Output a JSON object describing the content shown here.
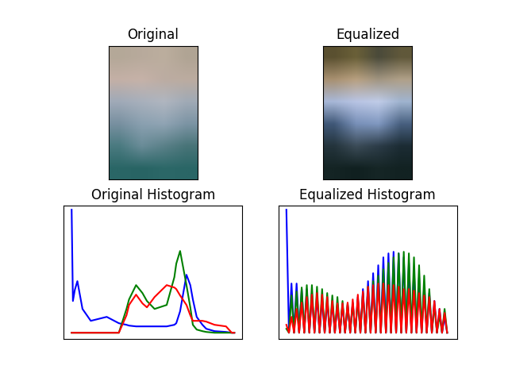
{
  "chart_data": [
    {
      "type": "image",
      "title": "Original",
      "tick_labels": false,
      "cells": [
        [
          "#b4a898",
          "#b8aa9c",
          "#bcae9e",
          "#b0a494"
        ],
        [
          "#c4b0a6",
          "#c6b2a8",
          "#bcaca2",
          "#bcaca0"
        ],
        [
          "#a0aab8",
          "#a8b0bc",
          "#b0b6c0",
          "#a0aab6"
        ],
        [
          "#7890a0",
          "#8aa0b0",
          "#90a4b4",
          "#7c94a4"
        ],
        [
          "#4a7a80",
          "#6a8c98",
          "#5a8088",
          "#487478"
        ],
        [
          "#2a6666",
          "#286464",
          "#2c6868",
          "#2a6666"
        ]
      ]
    },
    {
      "type": "image",
      "title": "Equalized",
      "tick_labels": false,
      "cells": [
        [
          "#5a5030",
          "#6a6038",
          "#4a4a3a",
          "#60583a"
        ],
        [
          "#a89070",
          "#b8a080",
          "#a09480",
          "#b0a088"
        ],
        [
          "#a8b8d8",
          "#b8c4e4",
          "#c0cce8",
          "#a0b4d0"
        ],
        [
          "#405878",
          "#7890b8",
          "#8098c0",
          "#486080"
        ],
        [
          "#24343c",
          "#3c4c58",
          "#2c3c48",
          "#1c2c34"
        ],
        [
          "#142424",
          "#102020",
          "#162626",
          "#122222"
        ]
      ]
    },
    {
      "type": "line",
      "title": "Original Histogram",
      "tick_labels": false,
      "xlim": [
        -12.75,
        267.75
      ],
      "ylim": [
        -8,
        160
      ],
      "x": [
        0,
        2,
        5,
        9,
        17,
        30,
        55,
        74,
        86,
        90,
        101,
        111,
        118,
        130,
        149,
        161,
        164,
        170,
        180,
        186,
        190,
        196,
        205,
        211,
        224,
        242,
        251,
        255
      ],
      "series": [
        {
          "color": "#0000ff",
          "values": [
            155,
            40,
            54,
            65,
            30,
            15,
            20,
            12,
            10,
            9,
            8,
            8,
            8,
            8,
            8,
            10,
            12,
            27,
            73,
            60,
            42,
            20,
            10,
            5,
            2,
            1,
            0,
            0
          ]
        },
        {
          "color": "#008000",
          "values": [
            0,
            0,
            0,
            0,
            0,
            0,
            0,
            0,
            30,
            42,
            60,
            50,
            40,
            30,
            35,
            70,
            87,
            103,
            60,
            32,
            10,
            4,
            2,
            1,
            0,
            0,
            0,
            0
          ]
        },
        {
          "color": "#ff0000",
          "values": [
            0,
            0,
            0,
            0,
            0,
            0,
            0,
            0,
            22,
            35,
            48,
            37,
            32,
            45,
            60,
            57,
            55,
            47,
            35,
            22,
            15,
            15,
            15,
            14,
            10,
            8,
            0,
            0
          ]
        }
      ]
    },
    {
      "type": "line",
      "title": "Equalized Histogram",
      "tick_labels": false,
      "xlim": [
        -12.75,
        267.75
      ],
      "ylim": [
        -8,
        160
      ],
      "x": [
        0,
        4,
        8,
        12,
        16,
        20,
        24,
        28,
        32,
        36,
        40,
        44,
        48,
        52,
        56,
        60,
        64,
        68,
        72,
        76,
        80,
        84,
        88,
        92,
        96,
        100,
        104,
        108,
        112,
        116,
        120,
        124,
        128,
        132,
        136,
        140,
        144,
        148,
        152,
        156,
        160,
        164,
        168,
        172,
        176,
        180,
        184,
        188,
        192,
        196,
        200,
        204,
        208,
        212,
        216,
        220,
        224,
        228,
        232,
        236,
        240,
        244,
        248,
        252
      ],
      "series": [
        {
          "color": "#0000ff",
          "values": [
            155,
            0,
            62,
            0,
            62,
            0,
            55,
            0,
            55,
            0,
            50,
            0,
            45,
            0,
            42,
            0,
            40,
            0,
            38,
            0,
            36,
            0,
            35,
            0,
            35,
            0,
            38,
            0,
            45,
            0,
            55,
            0,
            65,
            0,
            75,
            0,
            85,
            0,
            95,
            0,
            100,
            0,
            102,
            0,
            100,
            0,
            95,
            0,
            88,
            0,
            80,
            0,
            70,
            0,
            60,
            0,
            50,
            0,
            40,
            0,
            30,
            0,
            20,
            0
          ]
        },
        {
          "color": "#008000",
          "values": [
            5,
            0,
            47,
            0,
            52,
            0,
            57,
            0,
            60,
            0,
            60,
            0,
            58,
            0,
            55,
            0,
            50,
            0,
            47,
            0,
            45,
            0,
            40,
            0,
            37,
            0,
            37,
            0,
            42,
            0,
            50,
            0,
            58,
            0,
            65,
            0,
            72,
            0,
            80,
            0,
            88,
            0,
            95,
            0,
            100,
            0,
            102,
            0,
            100,
            0,
            95,
            0,
            85,
            0,
            72,
            0,
            55,
            0,
            35,
            0,
            22,
            0,
            30,
            0
          ]
        },
        {
          "color": "#ff0000",
          "values": [
            10,
            0,
            20,
            0,
            30,
            0,
            38,
            0,
            45,
            0,
            48,
            0,
            50,
            0,
            48,
            0,
            45,
            0,
            40,
            0,
            37,
            0,
            37,
            0,
            38,
            0,
            42,
            0,
            48,
            0,
            52,
            0,
            58,
            0,
            60,
            0,
            62,
            0,
            62,
            0,
            60,
            0,
            60,
            0,
            58,
            0,
            55,
            0,
            55,
            0,
            53,
            0,
            50,
            0,
            47,
            0,
            45,
            0,
            40,
            0,
            30,
            0,
            25,
            0
          ]
        }
      ]
    }
  ]
}
